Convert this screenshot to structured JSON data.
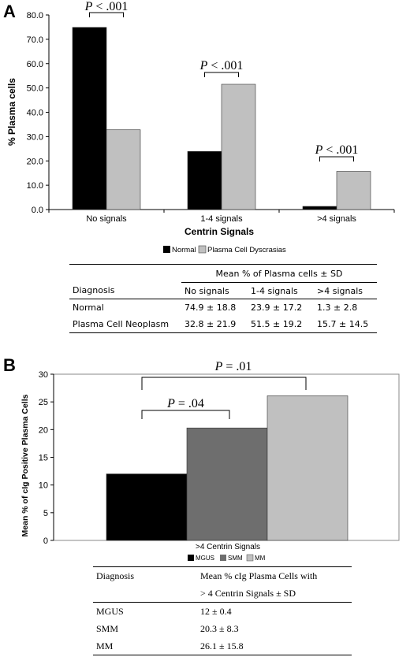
{
  "panel_a": {
    "letter": "A",
    "comparisons": [
      "P < .001",
      "P < .001",
      "P < .001"
    ],
    "legend": [
      "Normal",
      "Plasma Cell Dyscrasias"
    ],
    "table": {
      "header_diagnosis": "Diagnosis",
      "header_group": "Mean % of Plasma cells ±  SD",
      "columns": [
        "No signals",
        "1-4 signals",
        ">4 signals"
      ],
      "rows": [
        {
          "label": "Normal",
          "cells": [
            "74.9 ± 18.8",
            "23.9 ± 17.2",
            "1.3 ±  2.8"
          ]
        },
        {
          "label": "Plasma Cell Neoplasm",
          "cells": [
            "32.8 ± 21.9",
            "51.5 ± 19.2",
            "15.7 ± 14.5"
          ]
        }
      ]
    }
  },
  "panel_b": {
    "letter": "B",
    "comparisons": [
      "P = .04",
      "P = .01"
    ],
    "legend": [
      "MGUS",
      "SMM",
      "MM"
    ],
    "table": {
      "header_diagnosis": "Diagnosis",
      "header_value_line1": "Mean % cIg Plasma Cells with",
      "header_value_line2": "> 4 Centrin Signals ±  SD",
      "rows": [
        {
          "label": "MGUS",
          "value": "12  ± 0.4"
        },
        {
          "label": "SMM",
          "value": "20.3 ± 8.3"
        },
        {
          "label": "MM",
          "value": "26.1 ± 15.8"
        }
      ]
    }
  },
  "colors": {
    "normal": "#000000",
    "dyscrasia": "#c0c0c0",
    "mgus": "#000000",
    "smm": "#6e6e6e",
    "mm": "#c0c0c0"
  },
  "chart_data": [
    {
      "type": "bar",
      "categories": [
        "No signals",
        "1-4 signals",
        ">4 signals"
      ],
      "series": [
        {
          "name": "Normal",
          "values": [
            74.9,
            23.9,
            1.3
          ]
        },
        {
          "name": "Plasma Cell Dyscrasias",
          "values": [
            32.8,
            51.5,
            15.7
          ]
        }
      ],
      "xlabel": "Centrin Signals",
      "ylabel": "% Plasma cells",
      "ylim": [
        0,
        80
      ],
      "yticks": [
        "0.0",
        "10.0",
        "20.0",
        "30.0",
        "40.0",
        "50.0",
        "60.0",
        "70.0",
        "80.0"
      ],
      "grid": false,
      "legend_position": "bottom"
    },
    {
      "type": "bar",
      "categories": [
        ">4 Centrin Signals"
      ],
      "series": [
        {
          "name": "MGUS",
          "values": [
            12
          ]
        },
        {
          "name": "SMM",
          "values": [
            20.3
          ]
        },
        {
          "name": "MM",
          "values": [
            26.1
          ]
        }
      ],
      "xlabel": "",
      "ylabel": "Mean % of cIg Positive Plasma Cells",
      "ylim": [
        0,
        30
      ],
      "yticks": [
        "0",
        "5",
        "10",
        "15",
        "20",
        "25",
        "30"
      ],
      "grid": false,
      "legend_position": "bottom"
    }
  ]
}
